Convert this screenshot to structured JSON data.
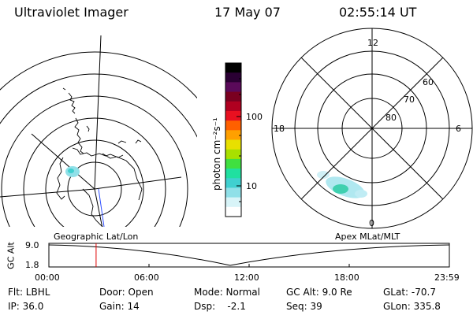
{
  "header": {
    "instrument": "Ultraviolet Imager",
    "date": "17 May 07",
    "time": "02:55:14 UT"
  },
  "colorbar": {
    "unit_label": "photon cm⁻²s⁻¹",
    "ticks": [
      "100",
      "10"
    ],
    "colors": [
      "#000000",
      "#2a0033",
      "#5a0a5a",
      "#7a0020",
      "#b00020",
      "#e81020",
      "#ff6000",
      "#ffa000",
      "#e8e000",
      "#a8e000",
      "#40e040",
      "#20e0a0",
      "#40d0d0",
      "#90e0e8",
      "#d8f4f8",
      "#ffffff"
    ]
  },
  "left_panel": {
    "projection_label": "Geographic Lat/Lon"
  },
  "right_panel": {
    "projection_label": "Apex MLat/MLT",
    "mlt_labels": {
      "top": "12",
      "left": "18",
      "right": "6",
      "bottom": "0"
    },
    "lat_labels": [
      "60",
      "70",
      "80"
    ]
  },
  "altitude_plot": {
    "axis_label": "GC Alt",
    "y_ticks": [
      "9.0",
      "1.8"
    ],
    "x_ticks": [
      "00:00",
      "06:00",
      "12:00",
      "18:00",
      "23:59"
    ],
    "current_time_fraction": 0.118
  },
  "footer": {
    "row1": [
      "Flt: LBHL",
      "Door: Open",
      "Mode: Normal",
      "GC Alt: 9.0 Re",
      "GLat: -70.7"
    ],
    "row2": [
      "IP: 36.0",
      "Gain: 14",
      "Dsp:    -2.1",
      "Seq: 39",
      "GLon: 335.8"
    ]
  }
}
